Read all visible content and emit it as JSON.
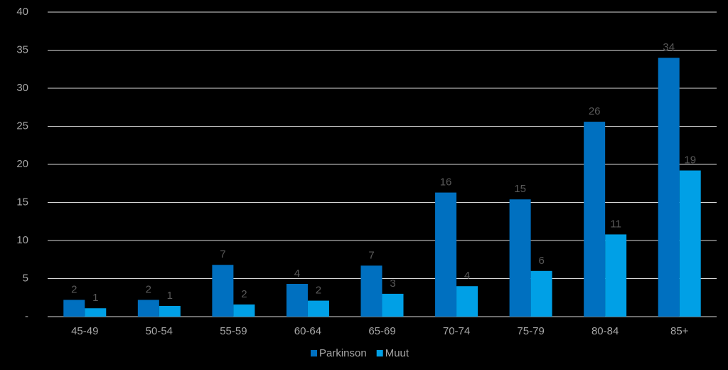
{
  "chart_data": {
    "type": "bar",
    "categories": [
      "45-49",
      "50-54",
      "55-59",
      "60-64",
      "65-69",
      "70-74",
      "75-79",
      "80-84",
      "85+"
    ],
    "series": [
      {
        "name": "Parkinson",
        "color": "#0070c0",
        "values": [
          2.2,
          2.2,
          6.8,
          4.3,
          6.7,
          16.3,
          15.4,
          25.6,
          34.0
        ],
        "value_labels": [
          "2",
          "2",
          "7",
          "4",
          "7",
          "16",
          "15",
          "26",
          "34"
        ]
      },
      {
        "name": "Muut",
        "color": "#00a0e6",
        "values": [
          1.1,
          1.4,
          1.6,
          2.1,
          3.0,
          4.0,
          6.0,
          10.8,
          19.2
        ],
        "value_labels": [
          "1",
          "1",
          "2",
          "2",
          "3",
          "4",
          "6",
          "11",
          "19"
        ]
      }
    ],
    "ylim": [
      0,
      40
    ],
    "yticks": [
      {
        "value": 0,
        "label": "-"
      },
      5,
      10,
      15,
      20,
      25,
      30,
      35,
      40
    ],
    "grid": true,
    "legend": "bottom"
  }
}
